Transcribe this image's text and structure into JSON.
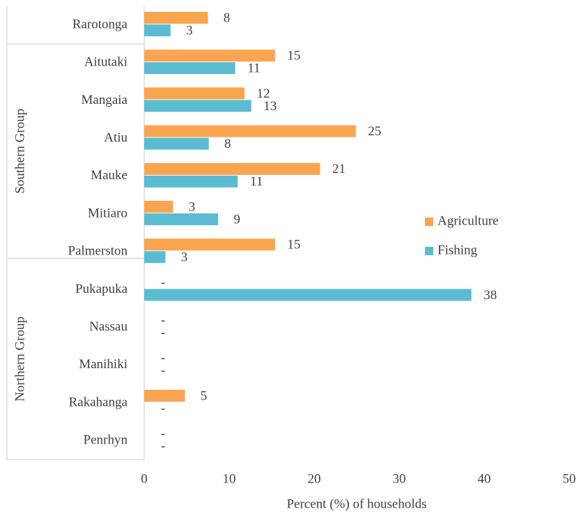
{
  "chart_data": {
    "type": "bar",
    "orientation": "horizontal",
    "x_label": "Percent (%) of households",
    "categories": [
      "Rarotonga",
      "Aitutaki",
      "Mangaia",
      "Atiu",
      "Mauke",
      "Mitiaro",
      "Palmerston",
      "Pukapuka",
      "Nassau",
      "Manihiki",
      "Rakahanga",
      "Penrhyn"
    ],
    "groups": [
      {
        "name": "Southern Group",
        "categories": [
          1,
          2,
          3,
          4,
          5,
          6
        ]
      },
      {
        "name": "Northern Group",
        "categories": [
          6,
          7,
          8,
          9,
          10,
          11
        ]
      }
    ],
    "series": [
      {
        "name": "Agriculture",
        "color": "#f9a54f",
        "values": [
          7.5,
          15.4,
          11.8,
          24.9,
          20.7,
          3.4,
          15.4,
          0,
          0,
          0,
          4.8,
          0
        ],
        "value_labels": [
          "8",
          "15",
          "12",
          "25",
          "21",
          "3",
          "15",
          "-",
          "-",
          "-",
          "5",
          "-"
        ]
      },
      {
        "name": "Fishing",
        "color": "#5bbcd1",
        "values": [
          3.1,
          10.7,
          12.6,
          7.6,
          11.0,
          8.7,
          2.5,
          38.5,
          0,
          0,
          0,
          0
        ],
        "value_labels": [
          "3",
          "11",
          "13",
          "8",
          "11",
          "9",
          "3",
          "38",
          "-",
          "-",
          "-",
          "-"
        ]
      }
    ],
    "xlim": [
      0,
      50
    ],
    "xticks": [
      0,
      10,
      20,
      30,
      40,
      50
    ],
    "grid": false,
    "legend": "right"
  }
}
